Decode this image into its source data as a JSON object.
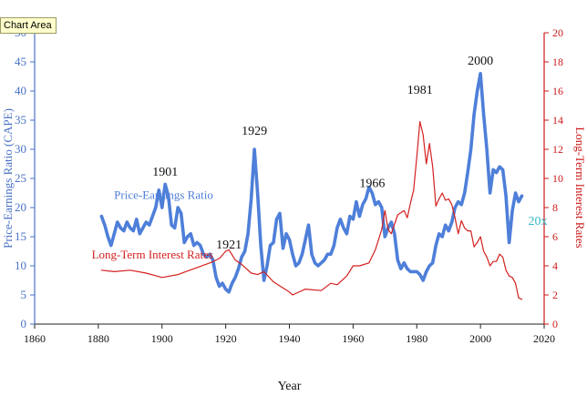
{
  "tooltip": "Chart Area",
  "chart_data": {
    "type": "line",
    "xlabel": "Year",
    "ylabel_left": "Price-Earnings Ratio (CAPE)",
    "ylabel_right": "Long-Term Interest Rates",
    "xlim": [
      1860,
      2020
    ],
    "x_ticks": [
      1860,
      1880,
      1900,
      1920,
      1940,
      1960,
      1980,
      2000,
      2020
    ],
    "ylim_left": [
      0,
      50
    ],
    "y_ticks_left": [
      0,
      5,
      10,
      15,
      20,
      25,
      30,
      35,
      40,
      45,
      50
    ],
    "ylim_right": [
      0,
      20
    ],
    "y_ticks_right": [
      0,
      2,
      4,
      6,
      8,
      10,
      12,
      14,
      16,
      18,
      20
    ],
    "colors": {
      "pe": "#4e7fd9",
      "rates": "#d42020",
      "left_axis": "#4a72c8",
      "right_axis": "#cc1a1a",
      "note": "#33b9c8"
    },
    "series": [
      {
        "name": "Price-Earnings Ratio",
        "axis": "left",
        "x": [
          1881,
          1882,
          1883,
          1884,
          1885,
          1886,
          1887,
          1888,
          1889,
          1890,
          1891,
          1892,
          1893,
          1894,
          1895,
          1896,
          1897,
          1898,
          1899,
          1900,
          1901,
          1902,
          1903,
          1904,
          1905,
          1906,
          1907,
          1908,
          1909,
          1910,
          1911,
          1912,
          1913,
          1914,
          1915,
          1916,
          1917,
          1918,
          1919,
          1920,
          1921,
          1922,
          1923,
          1924,
          1925,
          1926,
          1927,
          1928,
          1929,
          1930,
          1931,
          1932,
          1933,
          1934,
          1935,
          1936,
          1937,
          1938,
          1939,
          1940,
          1941,
          1942,
          1943,
          1944,
          1945,
          1946,
          1947,
          1948,
          1949,
          1950,
          1951,
          1952,
          1953,
          1954,
          1955,
          1956,
          1957,
          1958,
          1959,
          1960,
          1961,
          1962,
          1963,
          1964,
          1965,
          1966,
          1967,
          1968,
          1969,
          1970,
          1971,
          1972,
          1973,
          1974,
          1975,
          1976,
          1977,
          1978,
          1979,
          1980,
          1981,
          1982,
          1983,
          1984,
          1985,
          1986,
          1987,
          1988,
          1989,
          1990,
          1991,
          1992,
          1993,
          1994,
          1995,
          1996,
          1997,
          1998,
          1999,
          2000,
          2001,
          2002,
          2003,
          2004,
          2005,
          2006,
          2007,
          2008,
          2009,
          2010,
          2011,
          2012,
          2013
        ],
        "values": [
          18.5,
          17.0,
          15.0,
          13.5,
          15.5,
          17.5,
          16.5,
          16.0,
          17.5,
          16.5,
          16.0,
          18.0,
          15.5,
          16.5,
          17.5,
          17.0,
          18.5,
          20.0,
          23.0,
          20.0,
          24.0,
          22.0,
          17.0,
          16.5,
          20.0,
          19.0,
          14.0,
          15.0,
          15.5,
          13.5,
          14.0,
          13.5,
          12.0,
          11.5,
          12.0,
          11.0,
          8.0,
          6.5,
          7.0,
          6.0,
          5.5,
          7.0,
          8.0,
          9.5,
          11.5,
          12.5,
          15.5,
          21.5,
          30.0,
          22.5,
          13.5,
          7.5,
          10.0,
          13.5,
          14.0,
          18.0,
          19.0,
          13.0,
          15.5,
          14.5,
          12.0,
          10.0,
          10.5,
          12.0,
          14.5,
          17.0,
          12.0,
          10.5,
          10.0,
          10.5,
          11.0,
          12.0,
          12.0,
          13.5,
          16.5,
          18.0,
          16.5,
          15.5,
          18.5,
          18.0,
          21.0,
          18.5,
          20.5,
          21.5,
          23.5,
          22.5,
          20.5,
          21.0,
          20.0,
          15.0,
          16.5,
          17.5,
          15.5,
          11.0,
          9.5,
          10.5,
          9.5,
          9.0,
          9.0,
          9.0,
          8.5,
          7.5,
          9.0,
          10.0,
          10.5,
          13.5,
          15.5,
          15.0,
          17.0,
          16.0,
          17.5,
          20.0,
          21.0,
          20.5,
          22.5,
          26.0,
          30.0,
          36.0,
          40.0,
          43.0,
          36.0,
          30.0,
          22.5,
          26.5,
          26.0,
          27.0,
          26.5,
          22.0,
          14.0,
          19.5,
          22.5,
          21.0,
          22.0
        ]
      },
      {
        "name": "Long-Term Interest Rates",
        "axis": "right",
        "x": [
          1881,
          1885,
          1890,
          1895,
          1900,
          1905,
          1910,
          1915,
          1918,
          1920,
          1921,
          1923,
          1925,
          1928,
          1930,
          1932,
          1935,
          1940,
          1941,
          1945,
          1950,
          1953,
          1955,
          1958,
          1960,
          1962,
          1965,
          1967,
          1969,
          1970,
          1971,
          1972,
          1974,
          1976,
          1977,
          1978,
          1979,
          1980,
          1981,
          1982,
          1983,
          1984,
          1985,
          1986,
          1987,
          1988,
          1989,
          1990,
          1991,
          1992,
          1993,
          1994,
          1995,
          1996,
          1997,
          1998,
          1999,
          2000,
          2001,
          2002,
          2003,
          2004,
          2005,
          2006,
          2007,
          2008,
          2009,
          2010,
          2011,
          2012,
          2013
        ],
        "values": [
          3.7,
          3.6,
          3.7,
          3.5,
          3.2,
          3.4,
          3.8,
          4.2,
          4.5,
          5.0,
          5.1,
          4.4,
          4.1,
          3.5,
          3.4,
          3.6,
          2.9,
          2.2,
          2.0,
          2.4,
          2.3,
          2.8,
          2.7,
          3.3,
          4.0,
          4.0,
          4.2,
          5.1,
          6.5,
          7.8,
          6.5,
          6.2,
          7.5,
          7.8,
          7.3,
          8.3,
          9.2,
          11.5,
          13.9,
          13.0,
          11.0,
          12.4,
          10.8,
          8.1,
          8.6,
          9.0,
          8.5,
          8.6,
          8.2,
          7.3,
          6.2,
          7.1,
          6.6,
          6.4,
          6.4,
          5.3,
          5.6,
          6.0,
          5.0,
          4.6,
          4.0,
          4.3,
          4.3,
          4.8,
          4.6,
          3.7,
          3.3,
          3.2,
          2.8,
          1.8,
          1.7
        ]
      }
    ],
    "annotations": [
      {
        "text": "1901",
        "x": 1901,
        "y": 25.5,
        "axis": "left"
      },
      {
        "text": "1921",
        "x": 1921,
        "y": 13.0,
        "axis": "left"
      },
      {
        "text": "1929",
        "x": 1929,
        "y": 32.5,
        "axis": "left"
      },
      {
        "text": "1966",
        "x": 1966,
        "y": 23.5,
        "axis": "left"
      },
      {
        "text": "1981",
        "x": 1981,
        "y": 39.5,
        "axis": "left"
      },
      {
        "text": "2000",
        "x": 2000,
        "y": 44.5,
        "axis": "left"
      }
    ],
    "series_labels": [
      {
        "text": "Price-Earnings Ratio",
        "series": "pe",
        "x": 1900.5,
        "y": 21.5
      },
      {
        "text": "Long-Term Interest Rates",
        "series": "rates",
        "x": 1897,
        "y": 4.5
      }
    ],
    "note": {
      "text": "20x",
      "x": 2018,
      "y": 17.0
    }
  }
}
